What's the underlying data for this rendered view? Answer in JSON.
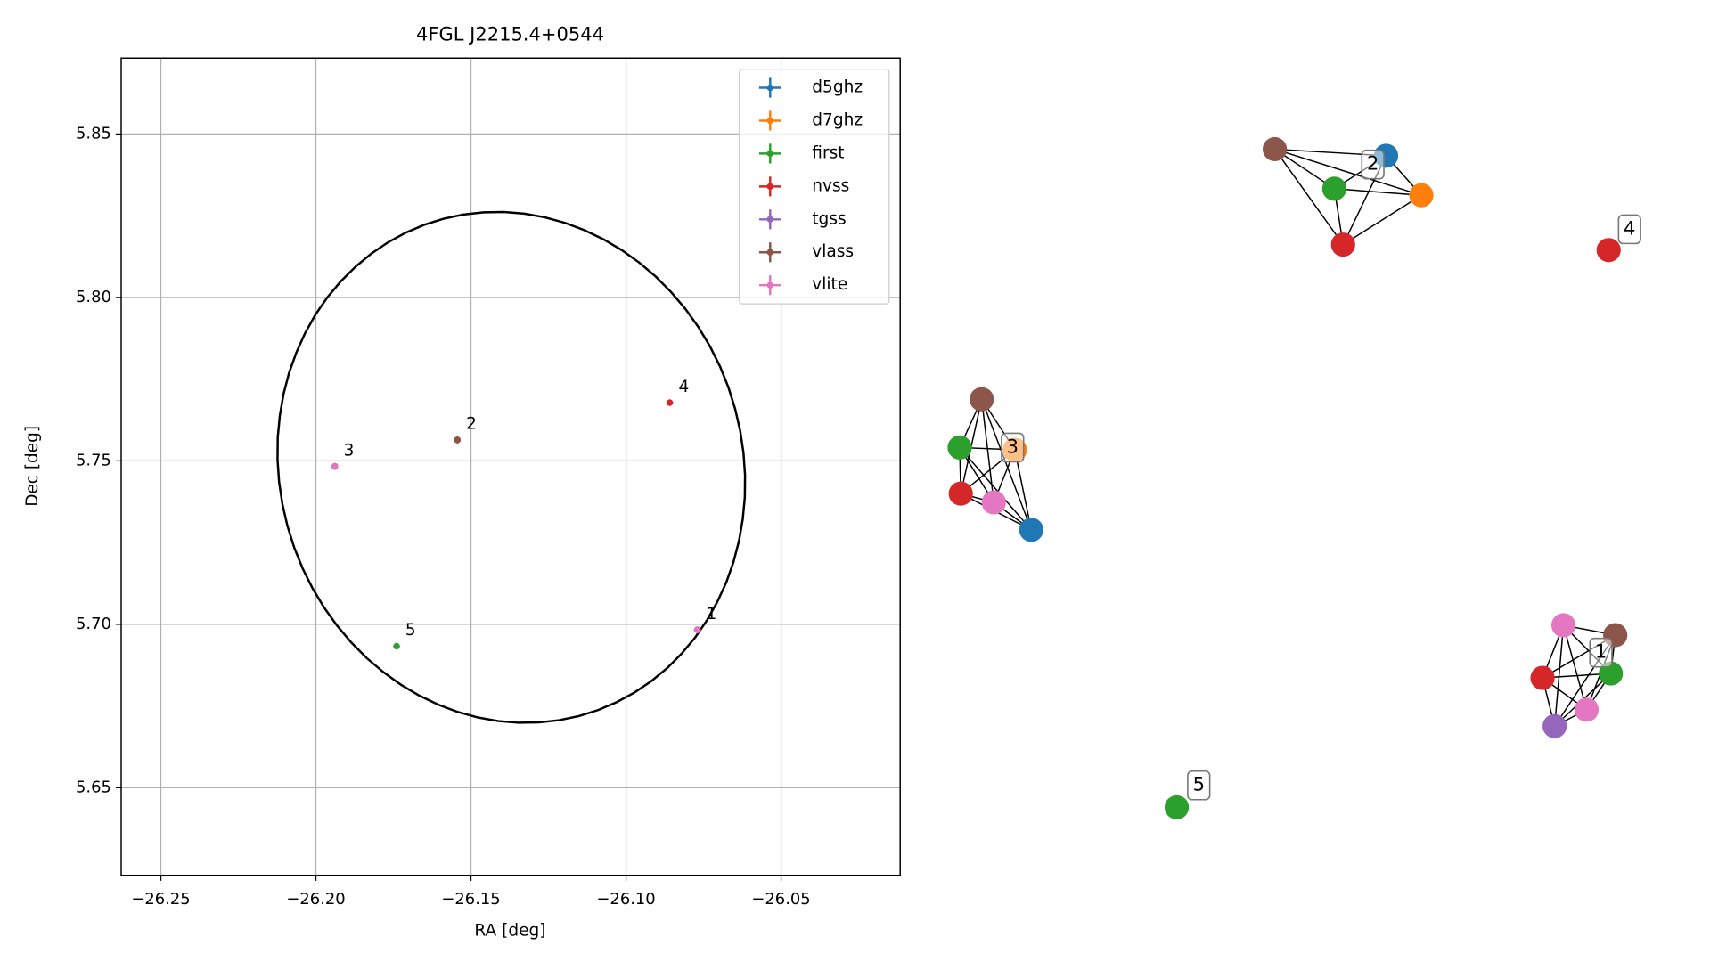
{
  "chart_data": {
    "type": "scatter",
    "title": "4FGL J2215.4+0544",
    "x_label": "RA [deg]",
    "y_label": "Dec [deg]",
    "xlim": [
      -26.2628,
      -26.0116
    ],
    "ylim": [
      5.6232,
      5.8732
    ],
    "xticks": [
      {
        "value": -26.25,
        "label": "−26.25"
      },
      {
        "value": -26.2,
        "label": "−26.20"
      },
      {
        "value": -26.15,
        "label": "−26.15"
      },
      {
        "value": -26.1,
        "label": "−26.10"
      },
      {
        "value": -26.05,
        "label": "−26.05"
      }
    ],
    "yticks": [
      5.65,
      {
        "value": 5.7,
        "label": "5.70"
      },
      5.75,
      {
        "value": 5.8,
        "label": "5.80"
      },
      5.85
    ],
    "grid": true,
    "legend_position": "upper right",
    "series": [
      {
        "name": "d5ghz",
        "color": "#1f77b4",
        "x": [
          -26.1544,
          -26.1939
        ],
        "y": [
          5.7564,
          5.7483
        ]
      },
      {
        "name": "d7ghz",
        "color": "#ff7f0e",
        "x": [
          -26.1544,
          -26.1939
        ],
        "y": [
          5.7564,
          5.7483
        ]
      },
      {
        "name": "first",
        "color": "#2ca02c",
        "x": [
          -26.077,
          -26.1544,
          -26.1939,
          -26.174
        ],
        "y": [
          5.6983,
          5.7564,
          5.7483,
          5.6933
        ]
      },
      {
        "name": "nvss",
        "color": "#d62728",
        "x": [
          -26.077,
          -26.1544,
          -26.1939,
          -26.0859
        ],
        "y": [
          5.6983,
          5.7564,
          5.7483,
          5.7678
        ]
      },
      {
        "name": "tgss",
        "color": "#9467bd",
        "x": [
          -26.077
        ],
        "y": [
          5.6983
        ]
      },
      {
        "name": "vlass",
        "color": "#8c564b",
        "x": [
          -26.077,
          -26.1544,
          -26.1939
        ],
        "y": [
          5.6983,
          5.7564,
          5.7483
        ]
      },
      {
        "name": "vlite",
        "color": "#e377c2",
        "x": [
          -26.077,
          -26.077,
          -26.1939
        ],
        "y": [
          5.6983,
          5.6983,
          5.7483
        ]
      }
    ],
    "annotations": [
      {
        "text": "1",
        "x": -26.077,
        "y": 5.6983
      },
      {
        "text": "2",
        "x": -26.1544,
        "y": 5.7564
      },
      {
        "text": "3",
        "x": -26.1939,
        "y": 5.7483
      },
      {
        "text": "4",
        "x": -26.0859,
        "y": 5.7678
      },
      {
        "text": "5",
        "x": -26.174,
        "y": 5.6933
      }
    ],
    "ellipse": {
      "center_x": -26.137,
      "center_y": 5.748,
      "semi_major": 0.0795,
      "semi_minor": 0.074,
      "angle": -60
    }
  },
  "graph": {
    "clusters": [
      {
        "label": "1",
        "nodes": [
          "vlite",
          "vlass",
          "nvss",
          "first",
          "vlite",
          "tgss"
        ]
      },
      {
        "label": "2",
        "nodes": [
          "vlass",
          "d5ghz",
          "first",
          "d7ghz",
          "nvss"
        ]
      },
      {
        "label": "3",
        "nodes": [
          "vlass",
          "first",
          "d7ghz",
          "nvss",
          "vlite",
          "d5ghz"
        ]
      },
      {
        "label": "4",
        "nodes": [
          "nvss"
        ]
      },
      {
        "label": "5",
        "nodes": [
          "first"
        ]
      }
    ]
  }
}
